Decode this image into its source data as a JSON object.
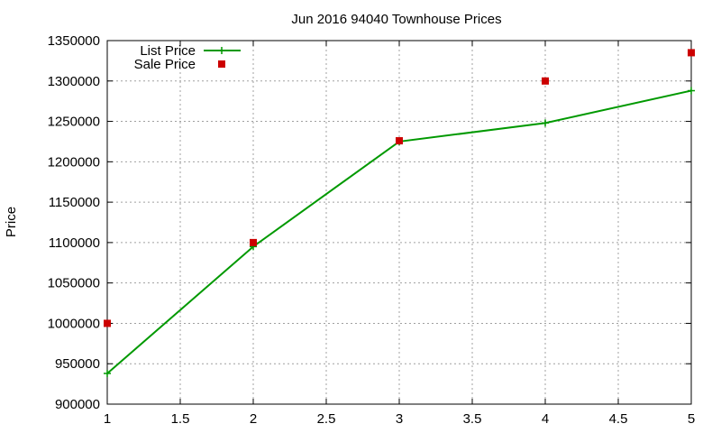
{
  "chart_data": {
    "type": "line",
    "title": "Jun 2016 94040 Townhouse Prices",
    "xlabel": "",
    "ylabel": "Price",
    "xlim": [
      1,
      5
    ],
    "ylim": [
      900000,
      1350000
    ],
    "x_ticks": [
      1,
      1.5,
      2,
      2.5,
      3,
      3.5,
      4,
      4.5,
      5
    ],
    "x_tick_labels": [
      "1",
      "1.5",
      "2",
      "2.5",
      "3",
      "3.5",
      "4",
      "4.5",
      "5"
    ],
    "y_ticks": [
      900000,
      950000,
      1000000,
      1050000,
      1100000,
      1150000,
      1200000,
      1250000,
      1300000,
      1350000
    ],
    "y_tick_labels": [
      "900000",
      "950000",
      "1000000",
      "1050000",
      "1100000",
      "1150000",
      "1200000",
      "1250000",
      "1300000",
      "1350000"
    ],
    "grid": true,
    "legend_position": "top-left",
    "series": [
      {
        "name": "List Price",
        "style": "line+cross",
        "color": "#009900",
        "x": [
          1,
          2,
          3,
          4,
          5
        ],
        "y": [
          938000,
          1095000,
          1225000,
          1248000,
          1288000
        ]
      },
      {
        "name": "Sale Price",
        "style": "square-points",
        "color": "#cc0000",
        "x": [
          1,
          2,
          3,
          4,
          5
        ],
        "y": [
          1000000,
          1100000,
          1226000,
          1300000,
          1335000
        ]
      }
    ]
  }
}
